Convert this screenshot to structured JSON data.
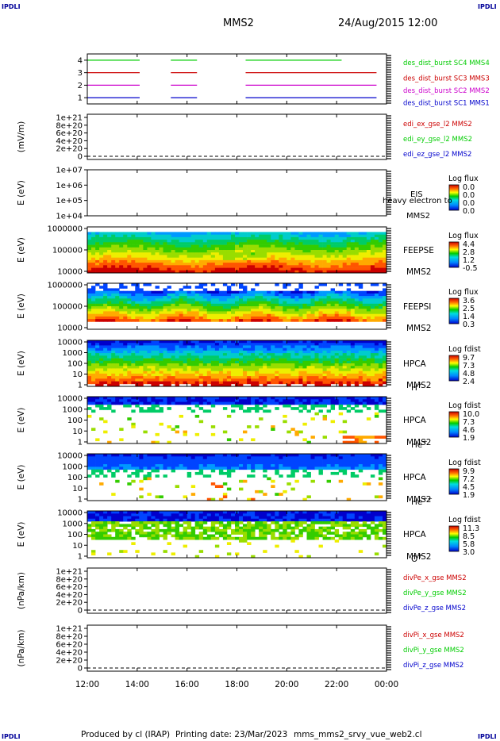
{
  "header": {
    "corner_tl": "IPDLI",
    "corner_tr": "IPDLI",
    "corner_bl": "IPDLI",
    "corner_br": "IPDLI",
    "title": "MMS2",
    "date": "24/Aug/2015 12:00"
  },
  "footer": {
    "produced_by": "Produced by  cl (IRAP)",
    "printing_date": "Printing date: 23/Mar/2023",
    "filename": "mms_mms2_srvy_vue_web2.cl"
  },
  "colors": {
    "blue": "#0000cc",
    "magenta": "#cc00cc",
    "red": "#cc0000",
    "green": "#00cc00",
    "title_blue": "#000099"
  },
  "chart_data": [
    {
      "type": "line",
      "name": "availability",
      "ylim": [
        0.5,
        4.5
      ],
      "yticks": [
        "1",
        "2",
        "3",
        "4"
      ],
      "series": [
        {
          "label": "des_dist_burst SC1 MMS1",
          "y": 1,
          "color": "#0000cc",
          "segments": [
            [
              0,
              2.1
            ],
            [
              3.35,
              4.4
            ],
            [
              6.35,
              11.6
            ]
          ]
        },
        {
          "label": "des_dist_burst SC2 MMS2",
          "y": 2,
          "color": "#cc00cc",
          "segments": [
            [
              0,
              2.1
            ],
            [
              3.35,
              4.4
            ],
            [
              6.35,
              11.6
            ]
          ]
        },
        {
          "label": "des_dist_burst SC3 MMS3",
          "y": 3,
          "color": "#cc0000",
          "segments": [
            [
              0,
              2.1
            ],
            [
              3.35,
              4.4
            ],
            [
              6.35,
              11.6
            ]
          ]
        },
        {
          "label": "des_dist_burst SC4 MMS4",
          "y": 4,
          "color": "#00cc00",
          "segments": [
            [
              0,
              2.1
            ],
            [
              3.35,
              4.4
            ],
            [
              6.35,
              10.2
            ]
          ]
        }
      ]
    },
    {
      "type": "line",
      "name": "edi",
      "ylabel": "(mV/m)",
      "yticks": [
        "0",
        "2e+20",
        "4e+20",
        "6e+20",
        "8e+20",
        "1e+21"
      ],
      "series": [
        {
          "label": "edi_ex_gse_l2 MMS2",
          "color": "#cc0000"
        },
        {
          "label": "edi_ey_gse_l2 MMS2",
          "color": "#00cc00"
        },
        {
          "label": "edi_ez_gse_l2 MMS2",
          "color": "#0000cc"
        }
      ]
    },
    {
      "type": "heatmap",
      "name": "eis",
      "ylabel": "E (eV)",
      "yticks": [
        "1e+04",
        "1e+05",
        "1e+06",
        "1e+07"
      ],
      "instrument": "EIS",
      "species": "heavy electron to",
      "spacecraft": "MMS2",
      "cbar_title": "Log flux",
      "cbar_ticks": [
        "0.0",
        "0.0",
        "0.0",
        "0.0"
      ]
    },
    {
      "type": "heatmap",
      "name": "feeps_e",
      "ylabel": "E (eV)",
      "yticks": [
        "10000",
        "100000",
        "1000000"
      ],
      "instrument": "FEEPSE",
      "spacecraft": "MMS2",
      "cbar_title": "Log flux",
      "cbar_ticks": [
        "4.4",
        "2.8",
        "1.2",
        "-0.5"
      ]
    },
    {
      "type": "heatmap",
      "name": "feeps_i",
      "ylabel": "E (eV)",
      "yticks": [
        "10000",
        "100000",
        "1000000"
      ],
      "instrument": "FEEPSI",
      "spacecraft": "MMS2",
      "cbar_title": "Log flux",
      "cbar_ticks": [
        "3.6",
        "2.5",
        "1.4",
        "0.3"
      ]
    },
    {
      "type": "heatmap",
      "name": "hpca_h",
      "ylabel": "E (eV)",
      "yticks": [
        "1",
        "10",
        "100",
        "1000",
        "10000"
      ],
      "instrument": "HPCA",
      "spacecraft": "MMS2",
      "ion": "H",
      "ion_charge": "+",
      "cbar_title": "Log fdist",
      "cbar_ticks": [
        "9.7",
        "7.3",
        "4.8",
        "2.4"
      ]
    },
    {
      "type": "heatmap",
      "name": "hpca_he",
      "ylabel": "E (eV)",
      "yticks": [
        "1",
        "10",
        "100",
        "1000",
        "10000"
      ],
      "instrument": "HPCA",
      "spacecraft": "MMS2",
      "ion": "He",
      "ion_charge": "+",
      "cbar_title": "Log fdist",
      "cbar_ticks": [
        "10.0",
        "7.3",
        "4.6",
        "1.9"
      ]
    },
    {
      "type": "heatmap",
      "name": "hpca_hepp",
      "ylabel": "E (eV)",
      "yticks": [
        "1",
        "10",
        "100",
        "1000",
        "10000"
      ],
      "instrument": "HPCA",
      "spacecraft": "MMS2",
      "ion": "He",
      "ion_charge": "++",
      "cbar_title": "Log fdist",
      "cbar_ticks": [
        "9.9",
        "7.2",
        "4.5",
        "1.9"
      ]
    },
    {
      "type": "heatmap",
      "name": "hpca_o",
      "ylabel": "E (eV)",
      "yticks": [
        "1",
        "10",
        "100",
        "1000",
        "10000"
      ],
      "instrument": "HPCA",
      "spacecraft": "MMS2",
      "ion": "O",
      "ion_charge": "+",
      "cbar_title": "Log fdist",
      "cbar_ticks": [
        "11.3",
        "8.5",
        "5.8",
        "3.0"
      ]
    },
    {
      "type": "line",
      "name": "divpe",
      "ylabel": "(nPa/km)",
      "yticks": [
        "0",
        "2e+20",
        "4e+20",
        "6e+20",
        "8e+20",
        "1e+21"
      ],
      "series": [
        {
          "label": "divPe_x_gse MMS2",
          "color": "#cc0000"
        },
        {
          "label": "divPe_y_gse MMS2",
          "color": "#00cc00"
        },
        {
          "label": "divPe_z_gse MMS2",
          "color": "#0000cc"
        }
      ]
    },
    {
      "type": "line",
      "name": "divpi",
      "ylabel": "(nPa/km)",
      "yticks": [
        "0",
        "2e+20",
        "4e+20",
        "6e+20",
        "8e+20",
        "1e+21"
      ],
      "series": [
        {
          "label": "divPi_x_gse MMS2",
          "color": "#cc0000"
        },
        {
          "label": "divPi_y_gse MMS2",
          "color": "#00cc00"
        },
        {
          "label": "divPi_z_gse MMS2",
          "color": "#0000cc"
        }
      ]
    }
  ],
  "time_axis": {
    "xlim_hours": [
      0,
      12
    ],
    "labels": [
      "12:00",
      "14:00",
      "16:00",
      "18:00",
      "20:00",
      "22:00",
      "00:00"
    ]
  }
}
